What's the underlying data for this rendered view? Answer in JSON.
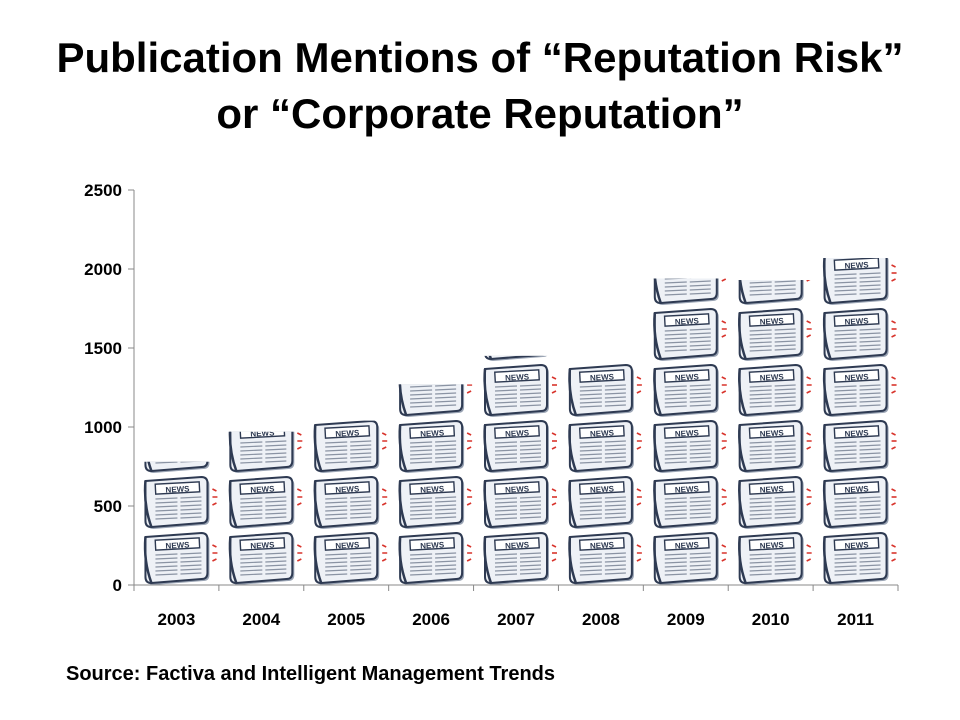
{
  "title": {
    "line1": "Publication Mentions of “Reputation Risk”",
    "line2": "or “Corporate Reputation”"
  },
  "source": "Source: Factiva and Intelligent Management Trends",
  "colors": {
    "paper": "#eef1f6",
    "paper_shadow": "#9aa4b4",
    "ink": "#2e3a52",
    "accent_red": "#d8342c",
    "axis": "#888888"
  },
  "chart_data": {
    "type": "bar",
    "style": "pictograph (stacked newspaper icons)",
    "categories": [
      "2003",
      "2004",
      "2005",
      "2006",
      "2007",
      "2008",
      "2009",
      "2010",
      "2011"
    ],
    "values": [
      780,
      970,
      1040,
      1270,
      1450,
      1410,
      1940,
      1930,
      2070
    ],
    "ylim": [
      0,
      2500
    ],
    "yticks": [
      0,
      500,
      1000,
      1500,
      2000,
      2500
    ],
    "xlabel": "",
    "ylabel": "",
    "grid": false,
    "legend": "none"
  }
}
